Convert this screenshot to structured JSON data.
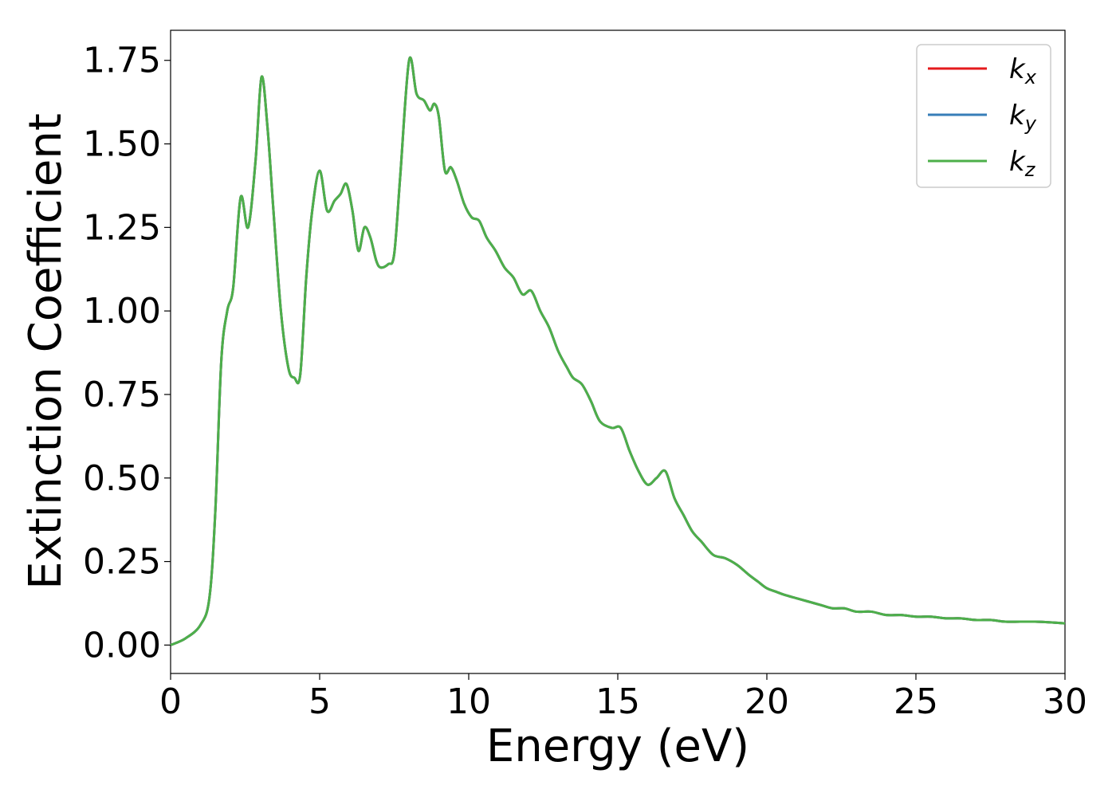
{
  "chart_data": {
    "type": "line",
    "xlabel": "Energy (eV)",
    "ylabel": "Extinction Coefficient",
    "xlim": [
      0,
      30
    ],
    "ylim": [
      -0.085,
      1.84
    ],
    "xticks": [
      0,
      5,
      10,
      15,
      20,
      25,
      30
    ],
    "yticks": [
      0.0,
      0.25,
      0.5,
      0.75,
      1.0,
      1.25,
      1.5,
      1.75
    ],
    "xtick_labels": [
      "0",
      "5",
      "10",
      "15",
      "20",
      "25",
      "30"
    ],
    "ytick_labels": [
      "0.00",
      "0.25",
      "0.50",
      "0.75",
      "1.00",
      "1.25",
      "1.50",
      "1.75"
    ],
    "grid": false,
    "legend_position": "top-right",
    "x": [
      0,
      0.5,
      1.0,
      1.3,
      1.5,
      1.7,
      1.9,
      2.1,
      2.35,
      2.6,
      2.85,
      3.05,
      3.25,
      3.45,
      3.7,
      3.95,
      4.15,
      4.35,
      4.55,
      4.75,
      5.0,
      5.25,
      5.5,
      5.7,
      5.9,
      6.1,
      6.3,
      6.5,
      6.7,
      6.9,
      7.05,
      7.3,
      7.5,
      7.7,
      8.0,
      8.25,
      8.5,
      8.7,
      8.85,
      9.0,
      9.2,
      9.4,
      9.6,
      9.85,
      10.1,
      10.35,
      10.6,
      10.9,
      11.2,
      11.5,
      11.8,
      12.1,
      12.4,
      12.7,
      13.0,
      13.3,
      13.5,
      13.8,
      14.1,
      14.4,
      14.8,
      15.1,
      15.4,
      15.7,
      16.0,
      16.3,
      16.6,
      16.9,
      17.2,
      17.5,
      17.8,
      18.2,
      18.6,
      19.0,
      19.4,
      19.7,
      20.0,
      20.3,
      20.6,
      21.0,
      21.4,
      21.8,
      22.2,
      22.6,
      23.0,
      23.5,
      24.0,
      24.5,
      25.0,
      25.5,
      26.0,
      26.5,
      27.0,
      27.5,
      28.0,
      28.5,
      29.0,
      29.5,
      30.0
    ],
    "series": [
      {
        "name": "k_x",
        "color": "#e41a1c",
        "values": [
          0.0,
          0.02,
          0.06,
          0.14,
          0.4,
          0.85,
          1.0,
          1.07,
          1.34,
          1.25,
          1.45,
          1.7,
          1.55,
          1.3,
          1.0,
          0.83,
          0.8,
          0.81,
          1.1,
          1.3,
          1.42,
          1.3,
          1.33,
          1.35,
          1.38,
          1.3,
          1.18,
          1.25,
          1.22,
          1.15,
          1.13,
          1.14,
          1.17,
          1.4,
          1.75,
          1.65,
          1.63,
          1.6,
          1.62,
          1.58,
          1.42,
          1.43,
          1.39,
          1.32,
          1.28,
          1.27,
          1.22,
          1.18,
          1.13,
          1.1,
          1.05,
          1.06,
          1.0,
          0.95,
          0.88,
          0.83,
          0.8,
          0.78,
          0.73,
          0.67,
          0.65,
          0.65,
          0.58,
          0.52,
          0.48,
          0.5,
          0.52,
          0.44,
          0.39,
          0.34,
          0.31,
          0.27,
          0.26,
          0.24,
          0.21,
          0.19,
          0.17,
          0.16,
          0.15,
          0.14,
          0.13,
          0.12,
          0.11,
          0.11,
          0.1,
          0.1,
          0.09,
          0.09,
          0.085,
          0.085,
          0.08,
          0.08,
          0.075,
          0.075,
          0.07,
          0.07,
          0.07,
          0.068,
          0.065
        ]
      },
      {
        "name": "k_y",
        "color": "#377eb8",
        "values": [
          0.0,
          0.02,
          0.06,
          0.14,
          0.4,
          0.85,
          1.0,
          1.07,
          1.34,
          1.25,
          1.45,
          1.7,
          1.55,
          1.3,
          1.0,
          0.83,
          0.8,
          0.81,
          1.1,
          1.3,
          1.42,
          1.3,
          1.33,
          1.35,
          1.38,
          1.3,
          1.18,
          1.25,
          1.22,
          1.15,
          1.13,
          1.14,
          1.17,
          1.4,
          1.75,
          1.65,
          1.63,
          1.6,
          1.62,
          1.58,
          1.42,
          1.43,
          1.39,
          1.32,
          1.28,
          1.27,
          1.22,
          1.18,
          1.13,
          1.1,
          1.05,
          1.06,
          1.0,
          0.95,
          0.88,
          0.83,
          0.8,
          0.78,
          0.73,
          0.67,
          0.65,
          0.65,
          0.58,
          0.52,
          0.48,
          0.5,
          0.52,
          0.44,
          0.39,
          0.34,
          0.31,
          0.27,
          0.26,
          0.24,
          0.21,
          0.19,
          0.17,
          0.16,
          0.15,
          0.14,
          0.13,
          0.12,
          0.11,
          0.11,
          0.1,
          0.1,
          0.09,
          0.09,
          0.085,
          0.085,
          0.08,
          0.08,
          0.075,
          0.075,
          0.07,
          0.07,
          0.07,
          0.068,
          0.065
        ]
      },
      {
        "name": "k_z",
        "color": "#4daf4a",
        "values": [
          0.0,
          0.02,
          0.06,
          0.14,
          0.4,
          0.85,
          1.0,
          1.07,
          1.34,
          1.25,
          1.45,
          1.7,
          1.55,
          1.3,
          1.0,
          0.83,
          0.8,
          0.81,
          1.1,
          1.3,
          1.42,
          1.3,
          1.33,
          1.35,
          1.38,
          1.3,
          1.18,
          1.25,
          1.22,
          1.15,
          1.13,
          1.14,
          1.17,
          1.4,
          1.75,
          1.65,
          1.63,
          1.6,
          1.62,
          1.58,
          1.42,
          1.43,
          1.39,
          1.32,
          1.28,
          1.27,
          1.22,
          1.18,
          1.13,
          1.1,
          1.05,
          1.06,
          1.0,
          0.95,
          0.88,
          0.83,
          0.8,
          0.78,
          0.73,
          0.67,
          0.65,
          0.65,
          0.58,
          0.52,
          0.48,
          0.5,
          0.52,
          0.44,
          0.39,
          0.34,
          0.31,
          0.27,
          0.26,
          0.24,
          0.21,
          0.19,
          0.17,
          0.16,
          0.15,
          0.14,
          0.13,
          0.12,
          0.11,
          0.11,
          0.1,
          0.1,
          0.09,
          0.09,
          0.085,
          0.085,
          0.08,
          0.08,
          0.075,
          0.075,
          0.07,
          0.07,
          0.07,
          0.068,
          0.065
        ]
      }
    ],
    "legend": [
      {
        "symbol": "k",
        "subscript": "x"
      },
      {
        "symbol": "k",
        "subscript": "y"
      },
      {
        "symbol": "k",
        "subscript": "z"
      }
    ]
  }
}
